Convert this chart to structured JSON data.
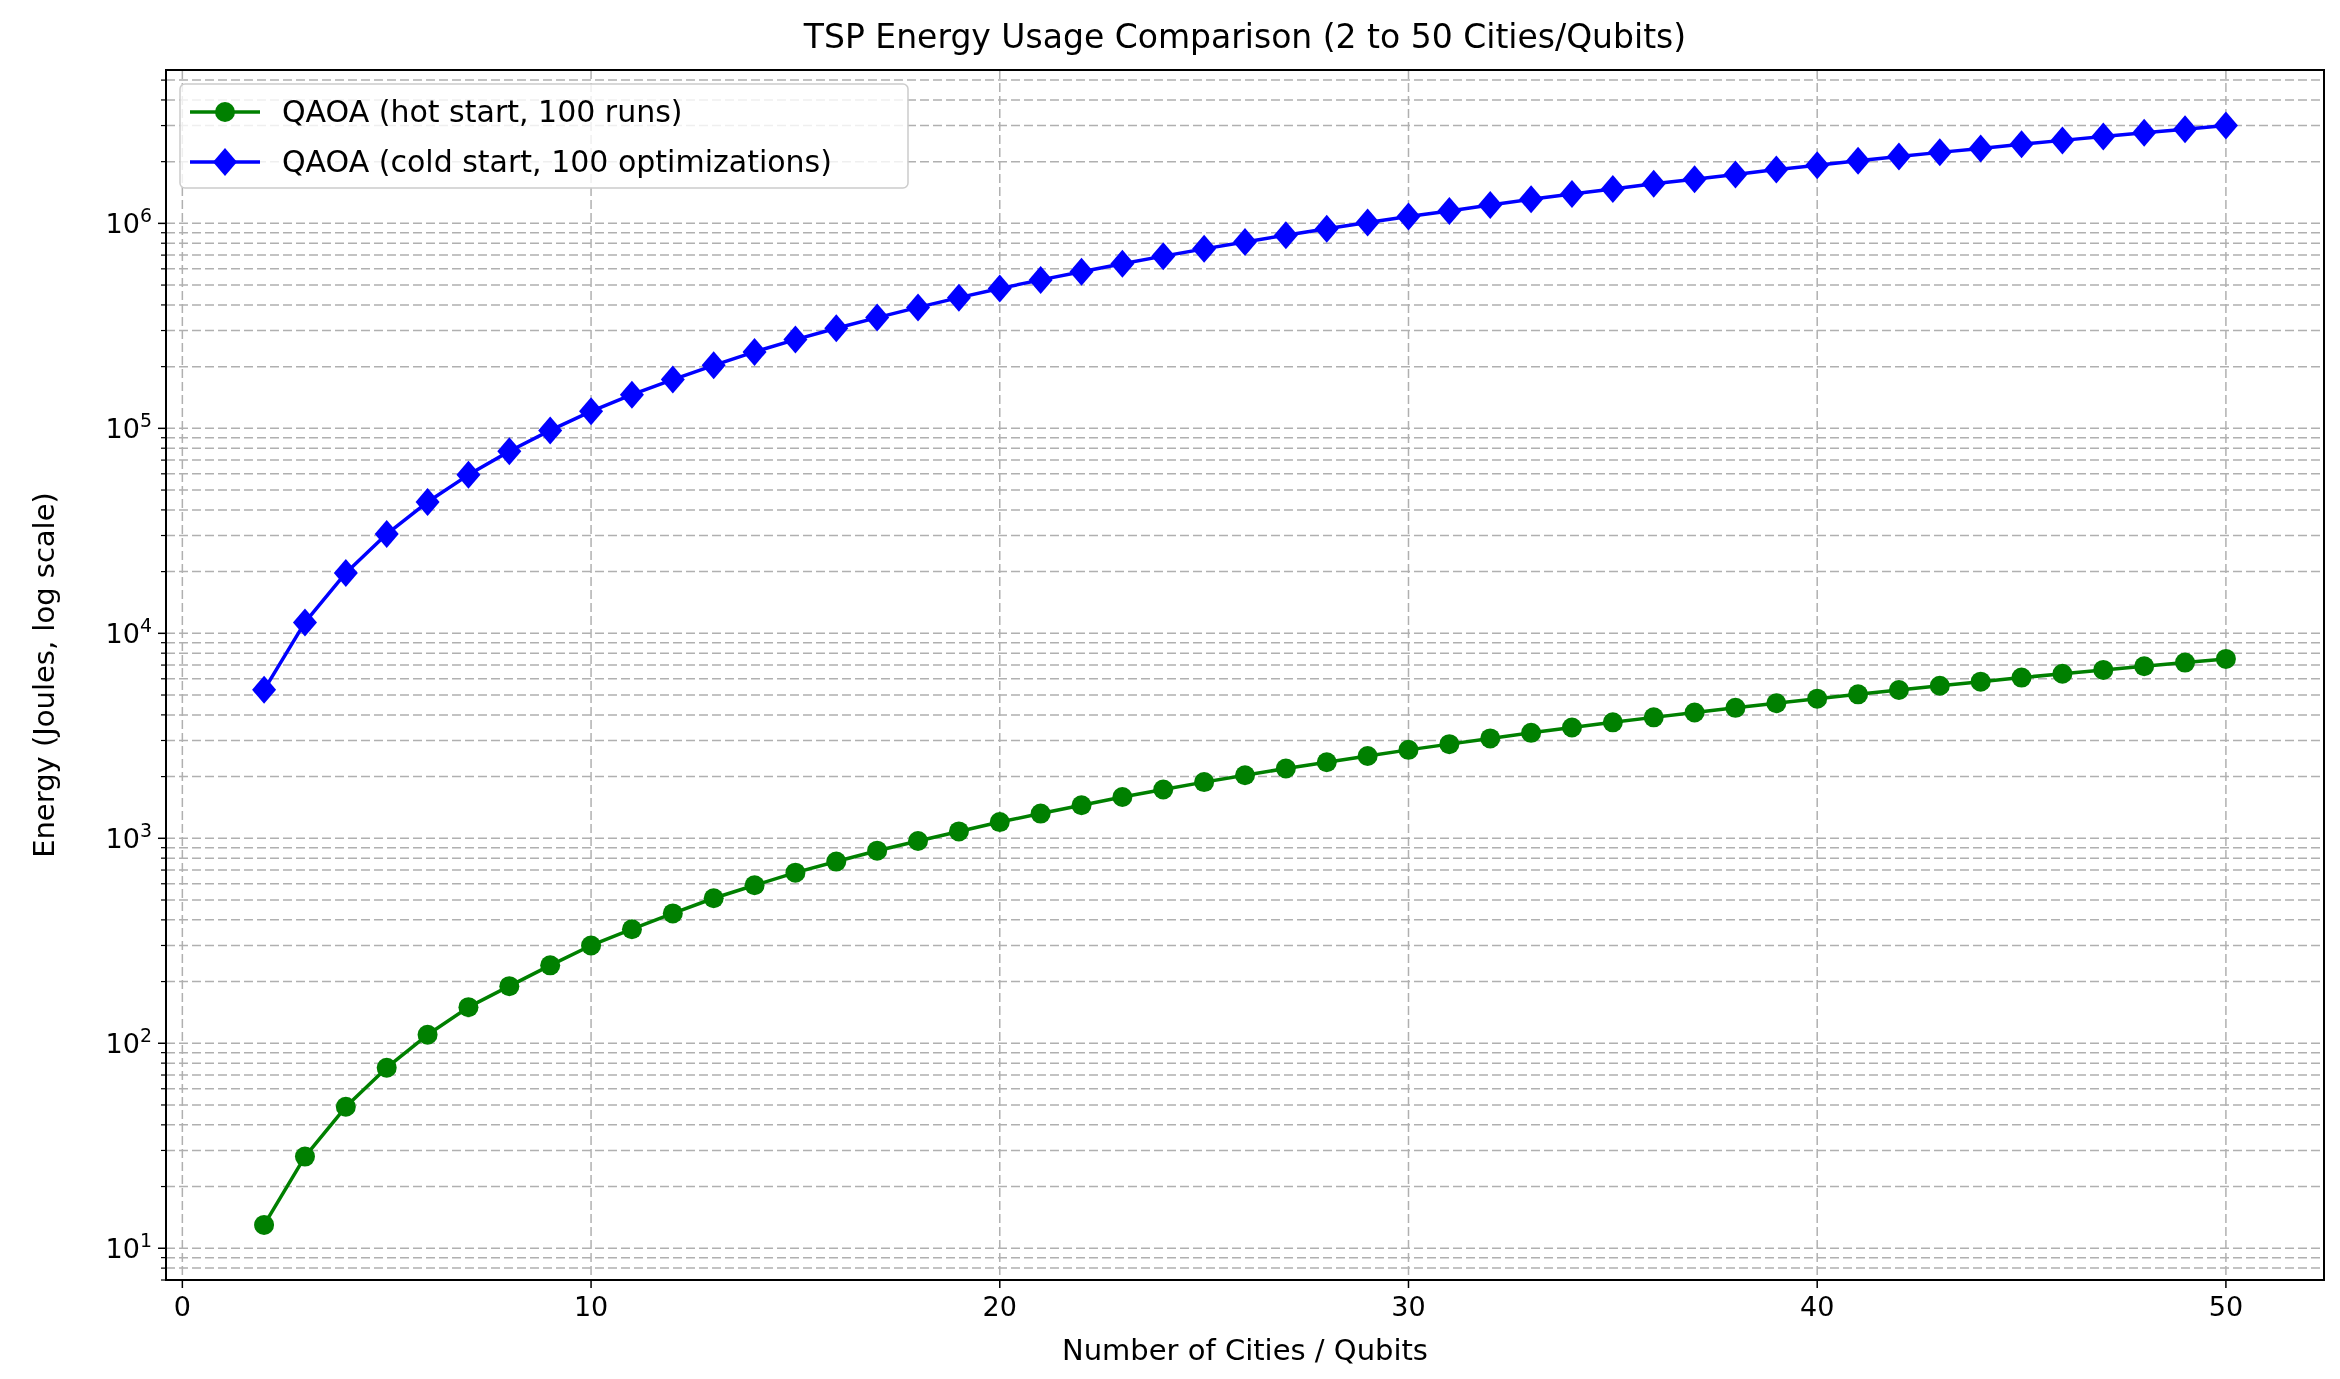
{
  "chart_data": {
    "type": "line",
    "title": "TSP Energy Usage Comparison (2 to 50 Cities/Qubits)",
    "xlabel": "Number of Cities / Qubits",
    "ylabel": "Energy (Joules, log scale)",
    "x": [
      2,
      3,
      4,
      5,
      6,
      7,
      8,
      9,
      10,
      11,
      12,
      13,
      14,
      15,
      16,
      17,
      18,
      19,
      20,
      21,
      22,
      23,
      24,
      25,
      26,
      27,
      28,
      29,
      30,
      31,
      32,
      33,
      34,
      35,
      36,
      37,
      38,
      39,
      40,
      41,
      42,
      43,
      44,
      45,
      46,
      47,
      48,
      49,
      50
    ],
    "series": [
      {
        "name": "QAOA (hot start, 100 runs)",
        "color": "#008000",
        "marker": "circle",
        "values": [
          13,
          28,
          49,
          76,
          110,
          150,
          190,
          240,
          300,
          360,
          430,
          510,
          590,
          680,
          770,
          870,
          970,
          1080,
          1200,
          1320,
          1450,
          1590,
          1730,
          1880,
          2030,
          2190,
          2350,
          2520,
          2700,
          2880,
          3070,
          3270,
          3470,
          3680,
          3890,
          4110,
          4330,
          4560,
          4800,
          5040,
          5290,
          5550,
          5810,
          6080,
          6350,
          6630,
          6910,
          7200,
          7500
        ]
      },
      {
        "name": "QAOA (cold start, 100 optimizations)",
        "color": "#0000ff",
        "marker": "diamond",
        "values": [
          5300,
          11300,
          19700,
          30500,
          43700,
          59300,
          77300,
          97700,
          121000,
          146000,
          173000,
          203000,
          236000,
          271000,
          308000,
          347000,
          389000,
          434000,
          481000,
          530000,
          581000,
          635000,
          692000,
          751000,
          812000,
          875000,
          941000,
          1010000,
          1080000,
          1150000,
          1230000,
          1310000,
          1390000,
          1470000,
          1560000,
          1640000,
          1730000,
          1830000,
          1920000,
          2020000,
          2120000,
          2220000,
          2320000,
          2430000,
          2540000,
          2650000,
          2770000,
          2880000,
          3000000
        ]
      }
    ],
    "log": "y",
    "xlim": [
      -0.4,
      52.4
    ],
    "xticks": [
      0,
      10,
      20,
      30,
      40,
      50
    ],
    "ylim": [
      7,
      5600000
    ],
    "yticks": [
      {
        "value": 10,
        "label": "10$^{1}$"
      },
      {
        "value": 100,
        "label": "10$^{2}$"
      },
      {
        "value": 1000,
        "label": "10$^{3}$"
      },
      {
        "value": 10000,
        "label": "10$^{4}$"
      },
      {
        "value": 100000,
        "label": "10$^{5}$"
      },
      {
        "value": 1000000,
        "label": "10$^{6}$"
      }
    ],
    "grid": true,
    "legend": "top left",
    "line_style": "solid"
  }
}
